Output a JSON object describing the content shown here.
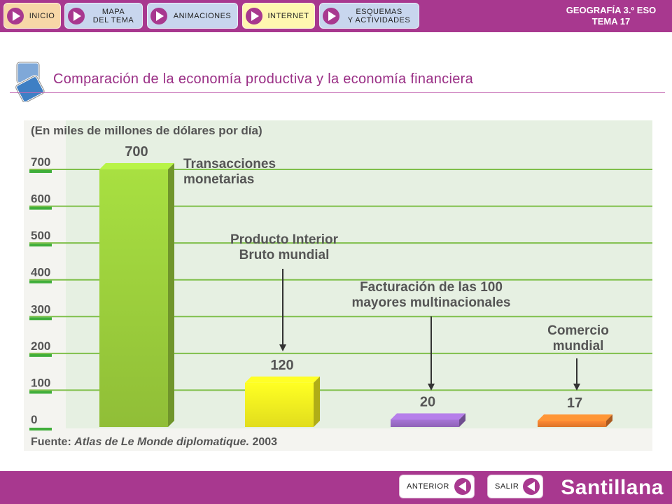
{
  "nav": {
    "inicio": "INICIO",
    "mapa": "MAPA\nDEL TEMA",
    "animaciones": "ANIMACIONES",
    "internet": "INTERNET",
    "esquemas": "ESQUEMAS\nY ACTIVIDADES"
  },
  "course": {
    "line1": "GEOGRAFÍA 3.º ESO",
    "line2": "TEMA 17"
  },
  "page_title": "Comparación de la economía productiva y la economía financiera",
  "footer": {
    "anterior": "ANTERIOR",
    "salir": "SALIR",
    "brand": "Santillana"
  },
  "chart_data": {
    "type": "bar",
    "unit_label": "(En miles de millones de dólares por día)",
    "source_prefix": "Fuente: ",
    "source_title": "Atlas de Le Monde diplomatique.",
    "source_year": " 2003",
    "yticks": [
      0,
      100,
      200,
      300,
      400,
      500,
      600,
      700
    ],
    "ylim": [
      0,
      700
    ],
    "grid": true,
    "categories": [
      [
        "Transacciones",
        "monetarias"
      ],
      [
        "Producto Interior",
        "Bruto mundial"
      ],
      [
        "Facturación de las 100",
        "mayores multinacionales"
      ],
      [
        "Comercio",
        "mundial"
      ]
    ],
    "values": [
      700,
      120,
      20,
      17
    ],
    "colors": [
      "#9ccf3c",
      "#f5f020",
      "#9a6cc6",
      "#ee7f2e"
    ]
  }
}
